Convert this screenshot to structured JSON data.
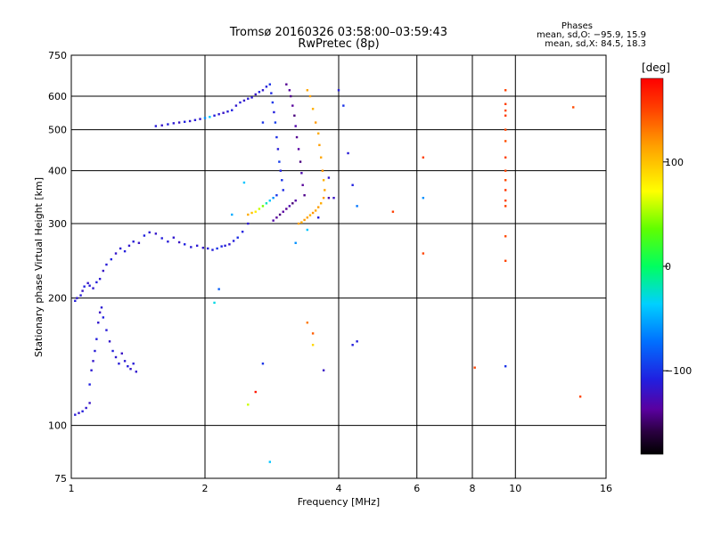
{
  "header": {
    "title": "Tromsø 20160326 03:58:00–03:59:43",
    "subtitle": "RwPretec (8p)",
    "stats_title": "Phases",
    "stats_line1": "mean, sd,O: −95.9, 15.9",
    "stats_line2": "mean, sd,X:  84.5, 18.3"
  },
  "chart_data": {
    "type": "scatter",
    "title": "Tromsø 20160326 03:58:00–03:59:43",
    "subtitle": "RwPretec (8p)",
    "xlabel": "Frequency [MHz]",
    "ylabel": "Stationary phase Virtual Height [km]",
    "x_scale": "log",
    "y_scale": "log",
    "xlim": [
      1,
      16
    ],
    "ylim": [
      75,
      750
    ],
    "x_ticks": [
      1,
      2,
      4,
      6,
      8,
      10,
      16
    ],
    "y_ticks": [
      75,
      100,
      200,
      300,
      400,
      500,
      600,
      750
    ],
    "grid": true,
    "colorbar": {
      "label": "[deg]",
      "range": [
        -180,
        180
      ],
      "ticks": [
        100,
        0,
        -100
      ]
    },
    "series": [
      {
        "x": [
          1.02,
          1.03,
          1.05,
          1.06,
          1.07,
          1.09,
          1.1,
          1.12,
          1.14,
          1.16,
          1.18,
          1.2,
          1.23,
          1.26,
          1.29,
          1.32,
          1.35,
          1.38,
          1.42,
          1.46,
          1.5,
          1.55,
          1.6,
          1.65,
          1.7,
          1.75,
          1.8,
          1.86,
          1.92,
          1.98,
          2.03,
          2.08,
          2.13,
          2.18,
          2.22,
          2.27,
          2.32,
          2.37,
          2.43,
          2.5
        ],
        "y": [
          197,
          200,
          203,
          208,
          213,
          217,
          214,
          211,
          218,
          222,
          232,
          240,
          247,
          255,
          262,
          258,
          266,
          272,
          270,
          281,
          286,
          284,
          277,
          272,
          278,
          271,
          268,
          264,
          266,
          263,
          262,
          260,
          262,
          265,
          266,
          268,
          273,
          278,
          287,
          300
        ],
        "phase": [
          -110,
          -115,
          -112,
          -120,
          -108,
          -118,
          -112,
          -116,
          -110,
          -114,
          -120,
          -112,
          -106,
          -118,
          -114,
          -110,
          -116,
          -112,
          -120,
          -108,
          -114,
          -118,
          -110,
          -112,
          -116,
          -120,
          -108,
          -112,
          -114,
          -118,
          -112,
          -110,
          -100,
          -106,
          -112,
          -116,
          -110,
          -102,
          -108,
          -114
        ]
      },
      {
        "x": [
          1.02,
          1.04,
          1.06,
          1.08,
          1.1,
          1.1,
          1.11,
          1.12,
          1.13,
          1.14,
          1.15,
          1.16,
          1.17,
          1.18,
          1.2,
          1.22,
          1.24,
          1.26,
          1.28,
          1.3,
          1.32,
          1.34,
          1.36,
          1.38,
          1.4
        ],
        "y": [
          106,
          107,
          108,
          110,
          113,
          125,
          135,
          142,
          150,
          160,
          175,
          185,
          190,
          180,
          168,
          158,
          150,
          145,
          140,
          148,
          142,
          138,
          136,
          140,
          134
        ],
        "phase": [
          -112,
          -118,
          -110,
          -116,
          -120,
          -108,
          -114,
          -118,
          -112,
          -110,
          -116,
          -120,
          -114,
          -108,
          -112,
          -118,
          -110,
          -116,
          -112,
          -120,
          -114,
          -110,
          -118,
          -112,
          -116
        ]
      },
      {
        "x": [
          1.55,
          1.6,
          1.65,
          1.7,
          1.75,
          1.8,
          1.85,
          1.9,
          1.95,
          2.0,
          2.05,
          2.1,
          2.15,
          2.2,
          2.25,
          2.3,
          2.35,
          2.4,
          2.45,
          2.5,
          2.55,
          2.6,
          2.65,
          2.7,
          2.75
        ],
        "y": [
          510,
          512,
          515,
          518,
          520,
          522,
          524,
          527,
          530,
          533,
          536,
          540,
          544,
          548,
          552,
          556,
          570,
          580,
          586,
          592,
          596,
          606,
          614,
          620,
          632
        ],
        "phase": [
          -112,
          -118,
          -110,
          -114,
          -120,
          -108,
          -116,
          -112,
          -118,
          -60,
          -40,
          -110,
          -114,
          -120,
          -112,
          -108,
          -116,
          -110,
          -118,
          -112,
          -114,
          -120,
          -108,
          -116,
          -110
        ]
      },
      {
        "x": [
          2.8,
          2.82,
          2.84,
          2.86,
          2.88,
          2.9,
          2.92,
          2.94,
          2.96,
          2.98,
          3.0,
          2.9,
          2.85,
          2.8,
          2.75,
          2.7,
          2.65,
          2.6,
          2.55,
          2.5
        ],
        "y": [
          640,
          610,
          580,
          550,
          520,
          480,
          450,
          420,
          400,
          380,
          360,
          350,
          345,
          340,
          335,
          330,
          325,
          320,
          318,
          315
        ],
        "phase": [
          -100,
          -105,
          -98,
          -110,
          -95,
          -102,
          -112,
          -96,
          -108,
          -100,
          -104,
          -98,
          -60,
          -40,
          -20,
          40,
          60,
          80,
          100,
          110
        ]
      },
      {
        "x": [
          3.05,
          3.1,
          3.12,
          3.15,
          3.18,
          3.2,
          3.22,
          3.25,
          3.28,
          3.3,
          3.32,
          3.35,
          3.2,
          3.15,
          3.1,
          3.05,
          3.0,
          2.95,
          2.9,
          2.85
        ],
        "y": [
          640,
          620,
          600,
          570,
          540,
          510,
          480,
          450,
          420,
          395,
          370,
          350,
          340,
          335,
          330,
          325,
          320,
          315,
          310,
          305
        ],
        "phase": [
          -140,
          -135,
          -142,
          -138,
          -145,
          -132,
          -140,
          -136,
          -144,
          -130,
          -138,
          -142,
          -134,
          -146,
          -130,
          -140,
          -136,
          -144,
          -138,
          -132
        ]
      },
      {
        "x": [
          3.4,
          3.45,
          3.5,
          3.55,
          3.6,
          3.62,
          3.65,
          3.68,
          3.7,
          3.72,
          3.7,
          3.65,
          3.6,
          3.55,
          3.5,
          3.45,
          3.4,
          3.35,
          3.3,
          3.25
        ],
        "y": [
          620,
          600,
          560,
          520,
          490,
          460,
          430,
          400,
          380,
          360,
          345,
          335,
          328,
          322,
          318,
          314,
          310,
          306,
          302,
          300
        ],
        "phase": [
          112,
          115,
          108,
          118,
          110,
          116,
          112,
          120,
          108,
          114,
          118,
          110,
          116,
          112,
          120,
          108,
          114,
          118,
          110,
          116
        ]
      },
      {
        "x": [
          9.5,
          9.5,
          9.5,
          9.5,
          9.5,
          9.5,
          9.5,
          9.5,
          9.5,
          9.5,
          9.5,
          9.5,
          9.5,
          9.5,
          8.1,
          14.0,
          13.5,
          6.2,
          6.2,
          5.3
        ],
        "y": [
          620,
          575,
          555,
          540,
          500,
          470,
          430,
          400,
          380,
          360,
          340,
          330,
          280,
          245,
          137,
          117,
          565,
          430,
          255,
          320
        ],
        "phase": [
          150,
          152,
          148,
          154,
          150,
          146,
          152,
          150,
          148,
          156,
          150,
          152,
          148,
          150,
          150,
          150,
          148,
          152,
          150,
          152
        ]
      },
      {
        "x": [
          4.0,
          4.1,
          4.2,
          4.3,
          4.4,
          3.9,
          3.8,
          3.6,
          3.4,
          3.2,
          3.5,
          4.3,
          2.7,
          2.6,
          2.5,
          2.1,
          2.15,
          2.3,
          2.45,
          2.7,
          3.4,
          3.5,
          2.8,
          6.2,
          9.5,
          4.4,
          3.7,
          3.8
        ],
        "y": [
          620,
          570,
          440,
          370,
          330,
          345,
          385,
          310,
          290,
          270,
          165,
          155,
          140,
          120,
          112,
          195,
          210,
          315,
          375,
          520,
          175,
          155,
          82,
          345,
          138,
          158,
          135,
          345
        ],
        "phase": [
          -110,
          -100,
          -112,
          -108,
          -70,
          -120,
          -116,
          -110,
          -40,
          -60,
          140,
          -110,
          -100,
          170,
          60,
          -30,
          -80,
          -50,
          -40,
          -100,
          130,
          90,
          -40,
          -60,
          -100,
          -110,
          -120,
          -130
        ]
      }
    ]
  }
}
